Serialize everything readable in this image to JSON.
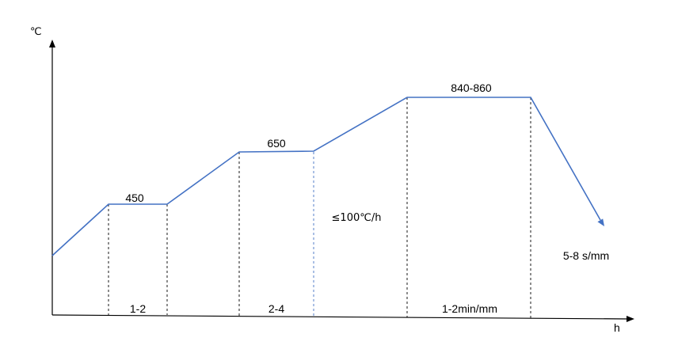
{
  "axes": {
    "y_unit": "℃",
    "x_unit": "h"
  },
  "process": {
    "hold_temperatures": {
      "first": "450",
      "second": "650",
      "third": "840-860"
    },
    "hold_times": {
      "first": "1-2",
      "second": "2-4",
      "third": "1-2min/mm"
    },
    "heating_rate": "≤100℃/h",
    "cooling_rate": "5-8 s/mm"
  },
  "colors": {
    "curve": "#4472c4",
    "axis": "#000000"
  }
}
